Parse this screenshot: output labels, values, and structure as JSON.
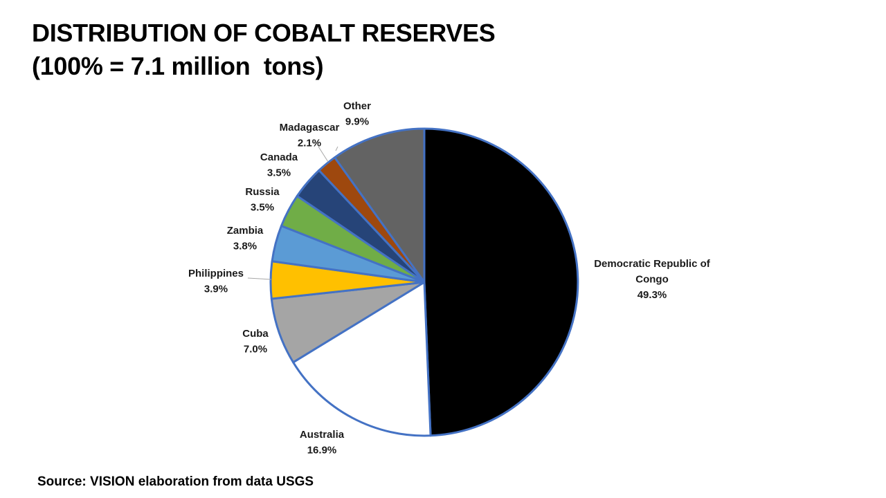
{
  "title_line1": "DISTRIBUTION OF COBALT RESERVES",
  "title_line2": "(100% = 7.1 million  tons)",
  "source": "Source: VISION elaboration from data USGS",
  "chart_data": {
    "type": "pie",
    "title": "DISTRIBUTION OF COBALT RESERVES (100% = 7.1 million  tons)",
    "unit": "%",
    "start": "12 o'clock, clockwise",
    "slices": [
      {
        "label": "Democratic Republic of Congo",
        "label_lines": [
          "Democratic Republic of",
          "Congo"
        ],
        "value": 49.3,
        "value_label": "49.3%",
        "color": "#000000"
      },
      {
        "label": "Australia",
        "label_lines": [
          "Australia"
        ],
        "value": 16.9,
        "value_label": "16.9%",
        "color": "#ffffff"
      },
      {
        "label": "Cuba",
        "label_lines": [
          "Cuba"
        ],
        "value": 7.0,
        "value_label": "7.0%",
        "color": "#a5a5a5"
      },
      {
        "label": "Philippines",
        "label_lines": [
          "Philippines"
        ],
        "value": 3.9,
        "value_label": "3.9%",
        "color": "#ffc000"
      },
      {
        "label": "Zambia",
        "label_lines": [
          "Zambia"
        ],
        "value": 3.8,
        "value_label": "3.8%",
        "color": "#5b9bd5"
      },
      {
        "label": "Russia",
        "label_lines": [
          "Russia"
        ],
        "value": 3.5,
        "value_label": "3.5%",
        "color": "#70ad47"
      },
      {
        "label": "Canada",
        "label_lines": [
          "Canada"
        ],
        "value": 3.5,
        "value_label": "3.5%",
        "color": "#264478"
      },
      {
        "label": "Madagascar",
        "label_lines": [
          "Madagascar"
        ],
        "value": 2.1,
        "value_label": "2.1%",
        "color": "#9e480e"
      },
      {
        "label": "Other",
        "label_lines": [
          "Other"
        ],
        "value": 9.9,
        "value_label": "9.9%",
        "color": "#636363"
      }
    ],
    "border_color": "#4472c4"
  }
}
